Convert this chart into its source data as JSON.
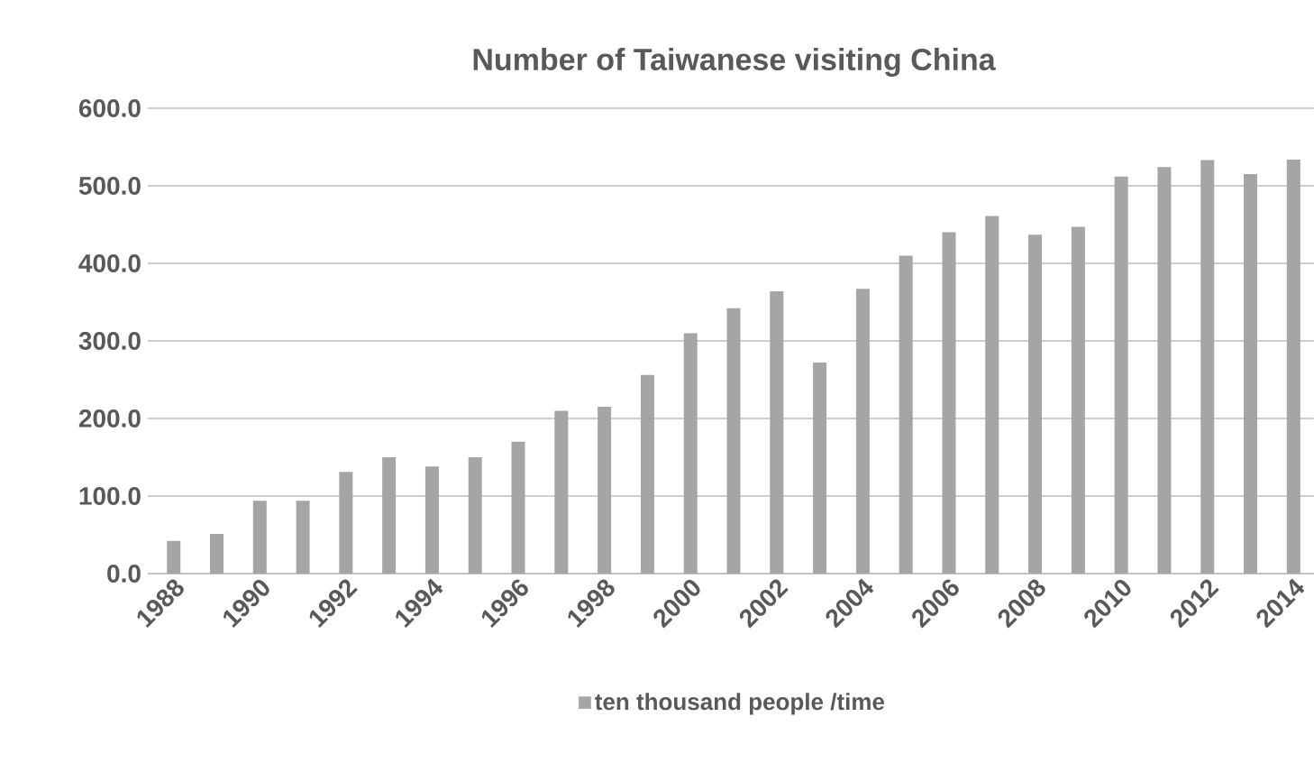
{
  "chart_data": {
    "type": "bar",
    "title": "Number of Taiwanese visiting China",
    "categories": [
      "1988",
      null,
      "1990",
      null,
      "1992",
      null,
      "1994",
      null,
      "1996",
      null,
      "1998",
      null,
      "2000",
      null,
      "2002",
      null,
      "2004",
      null,
      "2006",
      null,
      "2008",
      null,
      "2010",
      null,
      "2012",
      null,
      "2014"
    ],
    "series": [
      {
        "name": "ten thousand people /time",
        "color": "#a5a5a5",
        "values": [
          42,
          51,
          94,
          94,
          131,
          150,
          138,
          150,
          170,
          210,
          215,
          256,
          310,
          342,
          364,
          272,
          367,
          410,
          440,
          461,
          437,
          447,
          512,
          524,
          533,
          515,
          534
        ]
      }
    ],
    "ylim": [
      0,
      600
    ],
    "yticks": [
      {
        "value": 0,
        "label": "0.0"
      },
      {
        "value": 100,
        "label": "100.0"
      },
      {
        "value": 200,
        "label": "200.0"
      },
      {
        "value": 300,
        "label": "300.0"
      },
      {
        "value": 400,
        "label": "400.0"
      },
      {
        "value": 500,
        "label": "500.0"
      },
      {
        "value": 600,
        "label": "600.0"
      }
    ],
    "grid": "y",
    "legend": "bottom"
  }
}
